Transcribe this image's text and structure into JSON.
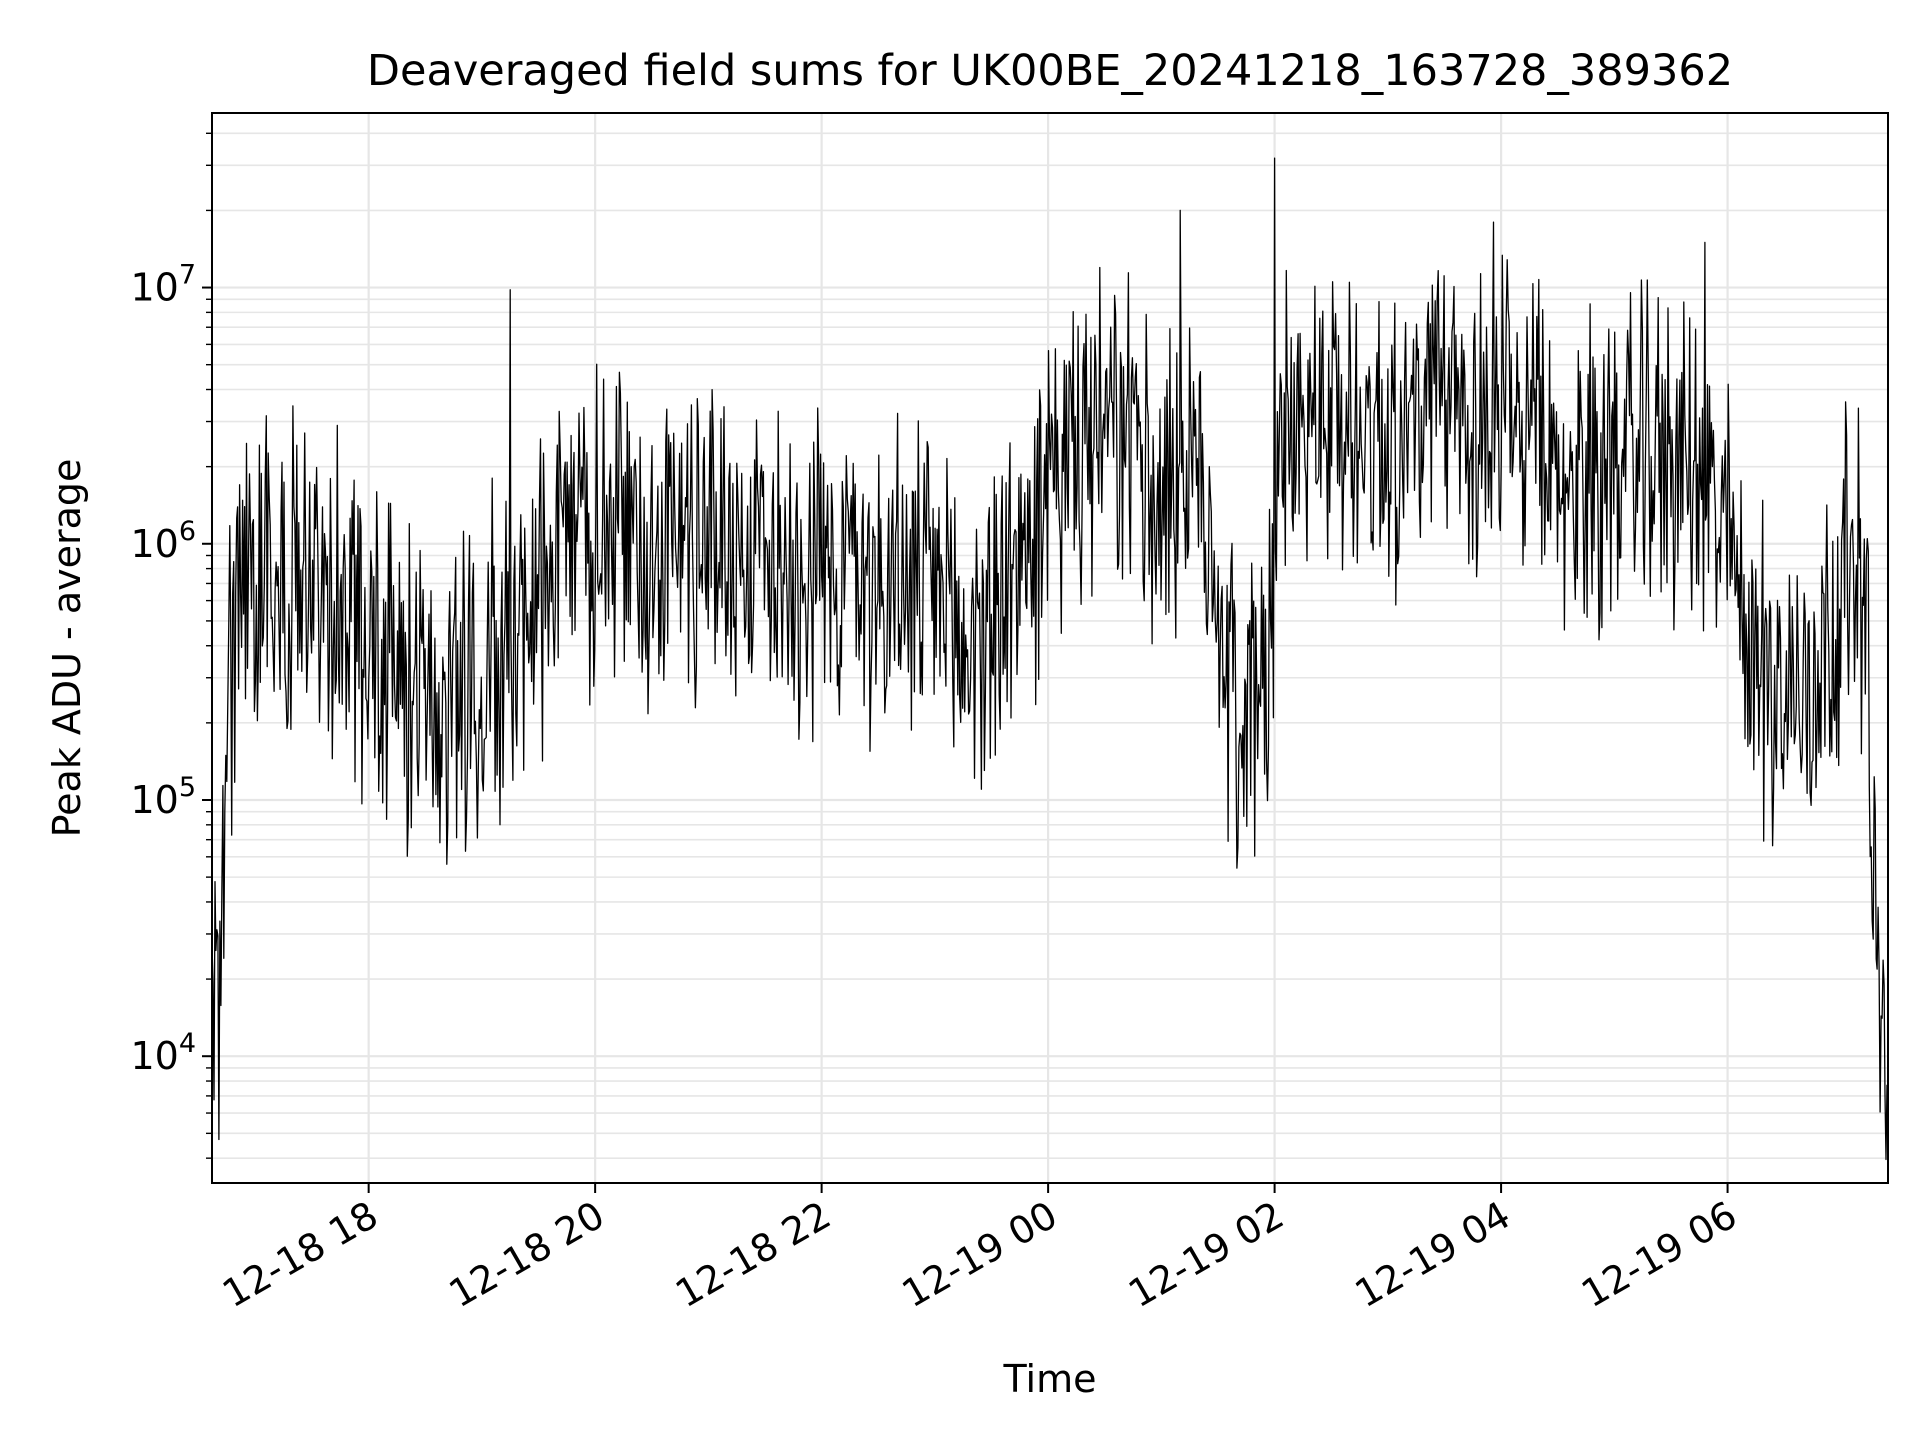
{
  "chart_data": {
    "type": "line",
    "title": "Deaveraged field sums for UK00BE_20241218_163728_389362",
    "xlabel": "Time",
    "ylabel": "Peak ADU - average",
    "yscale": "log",
    "ylim": [
      3200,
      48000000
    ],
    "xlim": [
      "2024-12-18 16:37",
      "2024-12-19 07:25"
    ],
    "grid": true,
    "x_ticks": [
      {
        "t": "2024-12-18 18:00",
        "label": "12-18 18"
      },
      {
        "t": "2024-12-18 20:00",
        "label": "12-18 20"
      },
      {
        "t": "2024-12-18 22:00",
        "label": "12-18 22"
      },
      {
        "t": "2024-12-19 00:00",
        "label": "12-19 00"
      },
      {
        "t": "2024-12-19 02:00",
        "label": "12-19 02"
      },
      {
        "t": "2024-12-19 04:00",
        "label": "12-19 04"
      },
      {
        "t": "2024-12-19 06:00",
        "label": "12-19 06"
      }
    ],
    "y_ticks": [
      {
        "value": 10000,
        "base": "10",
        "exp": "4"
      },
      {
        "value": 100000,
        "base": "10",
        "exp": "5"
      },
      {
        "value": 1000000,
        "base": "10",
        "exp": "6"
      },
      {
        "value": 10000000,
        "base": "10",
        "exp": "7"
      }
    ],
    "series": [
      {
        "color": "#000000",
        "envelope": {
          "x": [
            "2024-12-18 16:37",
            "2024-12-18 16:40",
            "2024-12-18 16:44",
            "2024-12-18 16:50",
            "2024-12-18 17:00",
            "2024-12-18 17:15",
            "2024-12-18 17:30",
            "2024-12-18 17:45",
            "2024-12-18 18:00",
            "2024-12-18 18:15",
            "2024-12-18 18:30",
            "2024-12-18 18:45",
            "2024-12-18 19:00",
            "2024-12-18 19:15",
            "2024-12-18 19:30",
            "2024-12-18 19:45",
            "2024-12-18 20:00",
            "2024-12-18 20:30",
            "2024-12-18 21:00",
            "2024-12-18 21:30",
            "2024-12-18 22:00",
            "2024-12-18 22:30",
            "2024-12-18 23:00",
            "2024-12-18 23:15",
            "2024-12-18 23:30",
            "2024-12-18 23:45",
            "2024-12-19 00:00",
            "2024-12-19 00:15",
            "2024-12-19 00:30",
            "2024-12-19 00:45",
            "2024-12-19 01:00",
            "2024-12-19 01:15",
            "2024-12-19 01:25",
            "2024-12-19 01:35",
            "2024-12-19 01:45",
            "2024-12-19 01:55",
            "2024-12-19 02:05",
            "2024-12-19 02:15",
            "2024-12-19 02:30",
            "2024-12-19 03:00",
            "2024-12-19 03:30",
            "2024-12-19 04:00",
            "2024-12-19 04:20",
            "2024-12-19 04:30",
            "2024-12-19 05:00",
            "2024-12-19 05:30",
            "2024-12-19 05:45",
            "2024-12-19 06:00",
            "2024-12-19 06:15",
            "2024-12-19 06:30",
            "2024-12-19 06:45",
            "2024-12-19 07:00",
            "2024-12-19 07:08",
            "2024-12-19 07:12",
            "2024-12-19 07:15",
            "2024-12-19 07:18",
            "2024-12-19 07:21",
            "2024-12-19 07:24"
          ],
          "y": [
            15000,
            12000,
            100000,
            700000,
            900000,
            700000,
            800000,
            600000,
            450000,
            300000,
            250000,
            280000,
            300000,
            400000,
            700000,
            900000,
            1100000,
            1000000,
            1100000,
            900000,
            850000,
            750000,
            600000,
            400000,
            500000,
            800000,
            1500000,
            2200000,
            2500000,
            2300000,
            1800000,
            1700000,
            1500000,
            300000,
            200000,
            300000,
            2500000,
            3000000,
            3000000,
            2800000,
            3300000,
            3200000,
            2500000,
            1500000,
            2300000,
            2200000,
            1800000,
            1000000,
            350000,
            250000,
            300000,
            650000,
            900000,
            700000,
            300000,
            30000,
            12000,
            9000
          ]
        },
        "peaks": [
          {
            "t": "2024-12-18 19:15",
            "value": 9800000
          },
          {
            "t": "2024-12-19 01:10",
            "value": 20000000
          },
          {
            "t": "2024-12-19 02:00",
            "value": 32000000
          },
          {
            "t": "2024-12-19 03:56",
            "value": 18000000
          },
          {
            "t": "2024-12-19 05:48",
            "value": 15000000
          }
        ]
      }
    ]
  }
}
